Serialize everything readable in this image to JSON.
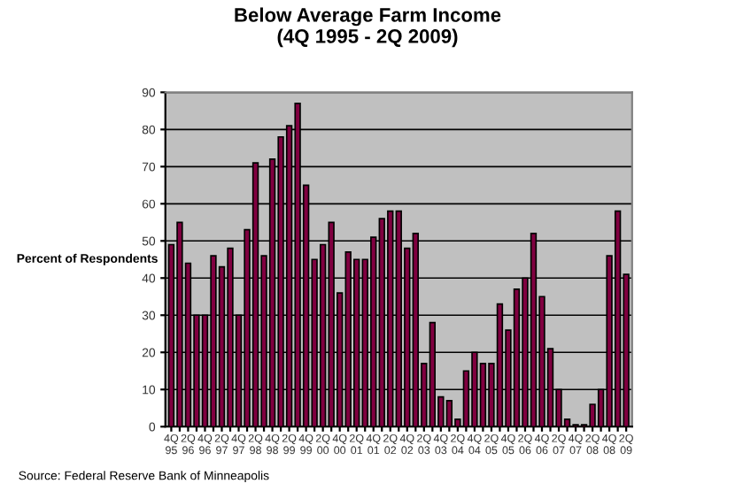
{
  "chart_data": {
    "type": "bar",
    "title": "Below Average Farm Income\n(4Q 1995 - 2Q 2009)",
    "ylabel": "Percent of Respondents",
    "categories": [
      "4Q\n95",
      null,
      "2Q\n96",
      null,
      "4Q\n96",
      null,
      "2Q\n97",
      null,
      "4Q\n97",
      null,
      "2Q\n98",
      null,
      "4Q\n98",
      null,
      "2Q\n99",
      null,
      "4Q\n99",
      null,
      "2Q\n00",
      null,
      "4Q\n00",
      null,
      "2Q\n01",
      null,
      "4Q\n01",
      null,
      "2Q\n02",
      null,
      "4Q\n02",
      null,
      "2Q\n03",
      null,
      "4Q\n03",
      null,
      "2Q\n04",
      null,
      "4Q\n04",
      null,
      "2Q\n05",
      null,
      "4Q\n05",
      null,
      "2Q\n06",
      null,
      "4Q\n06",
      null,
      "2Q\n07",
      null,
      "4Q\n07",
      null,
      "2Q\n08",
      null,
      "4Q\n08",
      null,
      "2Q\n09"
    ],
    "values": [
      49,
      55,
      44,
      30,
      30,
      46,
      43,
      48,
      30,
      53,
      71,
      46,
      72,
      78,
      81,
      87,
      65,
      45,
      49,
      55,
      36,
      47,
      45,
      45,
      51,
      56,
      58,
      58,
      48,
      52,
      17,
      28,
      8,
      7,
      2,
      15,
      20,
      17,
      17,
      33,
      26,
      37,
      40,
      52,
      35,
      21,
      10,
      2,
      0.5,
      0.5,
      6,
      10,
      46,
      58,
      41
    ],
    "color": "#800040",
    "ylim": [
      0,
      90
    ],
    "yticks": [
      0,
      10,
      20,
      30,
      40,
      50,
      60,
      70,
      80,
      90
    ],
    "grid": "y",
    "annotations": [
      "Source: Federal Reserve Bank of Minneapolis"
    ]
  }
}
